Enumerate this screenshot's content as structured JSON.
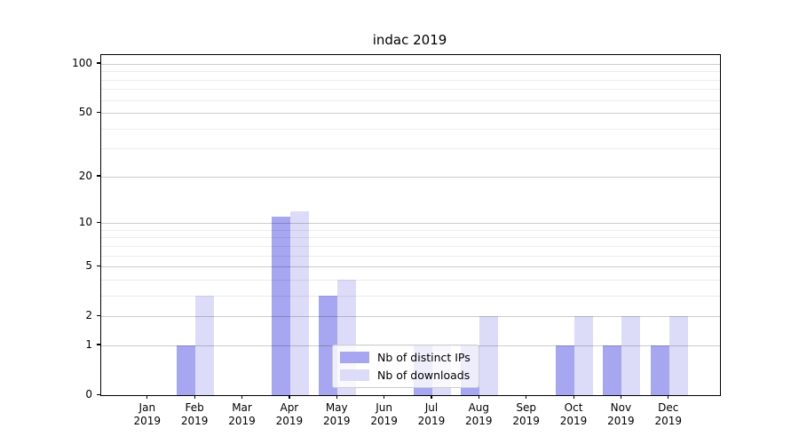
{
  "title": "indac 2019",
  "chart_data": {
    "type": "bar",
    "title": "indac 2019",
    "categories": [
      "Jan",
      "Feb",
      "Mar",
      "Apr",
      "May",
      "Jun",
      "Jul",
      "Aug",
      "Sep",
      "Oct",
      "Nov",
      "Dec"
    ],
    "category_year": "2019",
    "series": [
      {
        "name": "Nb of distinct IPs",
        "color": "#a6a6f1",
        "values": [
          0,
          1,
          0,
          11,
          3,
          0,
          1,
          1,
          0,
          1,
          1,
          1
        ]
      },
      {
        "name": "Nb of downloads",
        "color": "#dcdcf8",
        "values": [
          0,
          3,
          0,
          12,
          4,
          0,
          1,
          2,
          0,
          2,
          2,
          2
        ]
      }
    ],
    "xlabel": "",
    "ylabel": "",
    "yscale": "log1p",
    "ylim": [
      0,
      114
    ],
    "y_ticks": [
      0,
      1,
      2,
      5,
      10,
      20,
      50,
      100
    ],
    "y_minor_gridlines": [
      3,
      4,
      6,
      7,
      8,
      9,
      30,
      40,
      60,
      70,
      80,
      90
    ],
    "grid": "horizontal",
    "legend_position": "lower center"
  }
}
